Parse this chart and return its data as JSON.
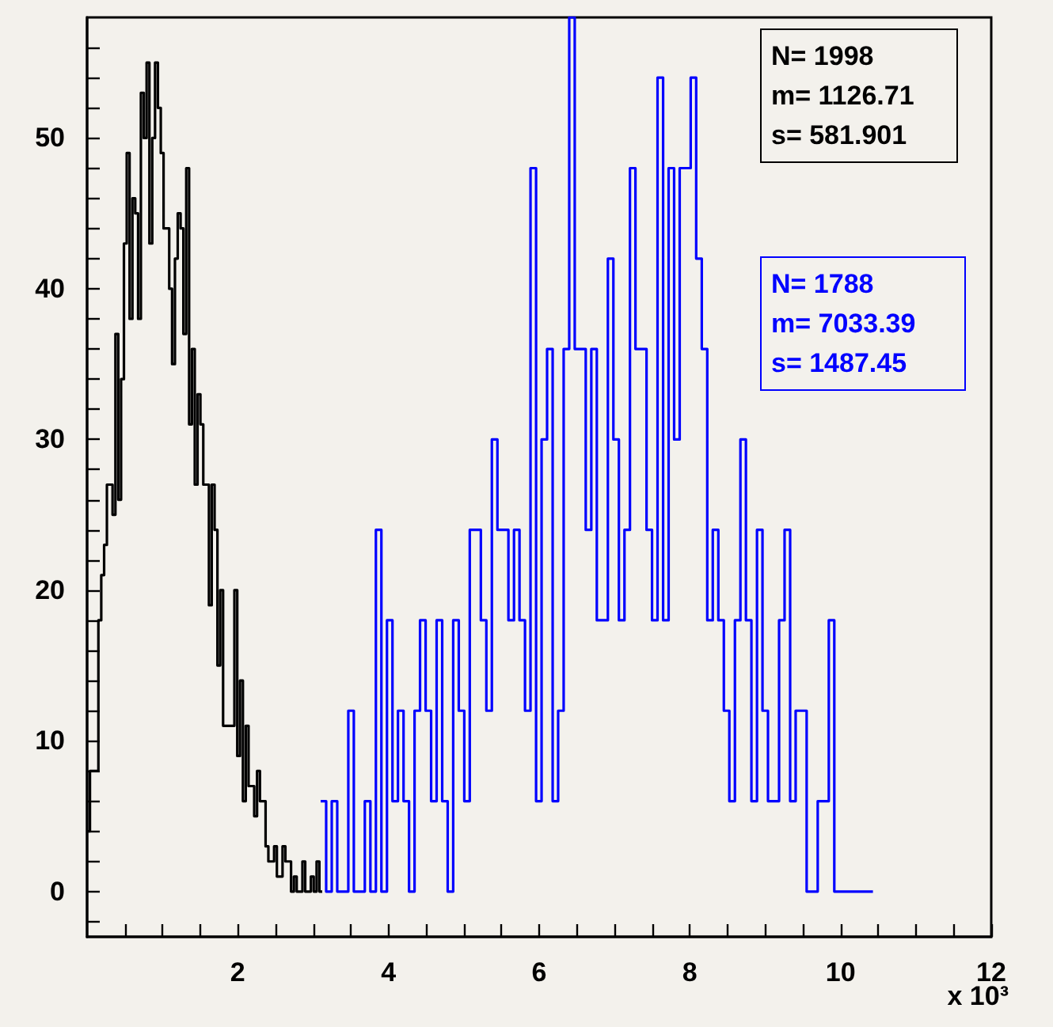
{
  "chart_data": {
    "type": "step",
    "xlim": [
      0,
      12
    ],
    "xticks": [
      {
        "value": 0.5,
        "label": null
      },
      {
        "value": 1,
        "label": null
      },
      {
        "value": 1.5,
        "label": null
      },
      2,
      {
        "value": 2.5,
        "label": null
      },
      {
        "value": 3,
        "label": null
      },
      {
        "value": 3.5,
        "label": null
      },
      4,
      {
        "value": 4.5,
        "label": null
      },
      {
        "value": 5,
        "label": null
      },
      {
        "value": 5.5,
        "label": null
      },
      6,
      {
        "value": 6.5,
        "label": null
      },
      {
        "value": 7,
        "label": null
      },
      {
        "value": 7.5,
        "label": null
      },
      8,
      {
        "value": 8.5,
        "label": null
      },
      {
        "value": 9,
        "label": null
      },
      {
        "value": 9.5,
        "label": null
      },
      10,
      {
        "value": 10.5,
        "label": null
      },
      {
        "value": 11,
        "label": null
      },
      {
        "value": 11.5,
        "label": null
      },
      12
    ],
    "ylim": [
      -3,
      58
    ],
    "yticks": [
      {
        "value": -2,
        "label": null
      },
      0,
      {
        "value": 2,
        "label": null
      },
      {
        "value": 4,
        "label": null
      },
      {
        "value": 6,
        "label": null
      },
      {
        "value": 8,
        "label": null
      },
      10,
      {
        "value": 12,
        "label": null
      },
      {
        "value": 14,
        "label": null
      },
      {
        "value": 16,
        "label": null
      },
      {
        "value": 18,
        "label": null
      },
      20,
      {
        "value": 22,
        "label": null
      },
      {
        "value": 24,
        "label": null
      },
      {
        "value": 26,
        "label": null
      },
      {
        "value": 28,
        "label": null
      },
      30,
      {
        "value": 32,
        "label": null
      },
      {
        "value": 34,
        "label": null
      },
      {
        "value": 36,
        "label": null
      },
      {
        "value": 38,
        "label": null
      },
      40,
      {
        "value": 42,
        "label": null
      },
      {
        "value": 44,
        "label": null
      },
      {
        "value": 46,
        "label": null
      },
      {
        "value": 48,
        "label": null
      },
      50,
      {
        "value": 52,
        "label": null
      },
      {
        "value": 54,
        "label": null
      },
      {
        "value": 56,
        "label": null
      }
    ],
    "annotations": [
      "N= 1998\nm= 1126.71\ns= 581.901",
      "N= 1788\nm= 7033.39\ns= 1487.45",
      "x 10³"
    ],
    "series": [
      {
        "color": "#000000",
        "x": [
          0,
          0.038,
          0.075,
          0.113,
          0.15,
          0.188,
          0.226,
          0.263,
          0.301,
          0.338,
          0.376,
          0.414,
          0.451,
          0.489,
          0.526,
          0.564,
          0.602,
          0.639,
          0.677,
          0.714,
          0.752,
          0.79,
          0.827,
          0.865,
          0.902,
          0.94,
          0.978,
          1.015,
          1.053,
          1.09,
          1.128,
          1.166,
          1.203,
          1.241,
          1.278,
          1.316,
          1.354,
          1.391,
          1.429,
          1.466,
          1.504,
          1.542,
          1.579,
          1.617,
          1.654,
          1.692,
          1.73,
          1.767,
          1.805,
          1.842,
          1.88,
          1.918,
          1.955,
          1.993,
          2.03,
          2.068,
          2.106,
          2.143,
          2.181,
          2.218,
          2.256,
          2.294,
          2.331,
          2.369,
          2.406,
          2.444,
          2.482,
          2.519,
          2.557,
          2.594,
          2.632,
          2.67,
          2.707,
          2.745,
          2.782,
          2.82,
          2.858,
          2.895,
          2.933,
          2.97,
          3.008,
          3.046,
          3.083,
          3.121
        ],
        "values": [
          4,
          8,
          8,
          8,
          18,
          21,
          23,
          27,
          27,
          25,
          37,
          26,
          34,
          43,
          49,
          38,
          46,
          45,
          38,
          53,
          50,
          55,
          43,
          50,
          55,
          52,
          49,
          44,
          44,
          40,
          35,
          42,
          45,
          44,
          37,
          48,
          31,
          36,
          27,
          33,
          31,
          27,
          27,
          19,
          27,
          24,
          15,
          20,
          11,
          11,
          11,
          11,
          20,
          9,
          14,
          6,
          11,
          7,
          7,
          5,
          8,
          6,
          6,
          3,
          2,
          2,
          3,
          1,
          1,
          3,
          2,
          2,
          0,
          1,
          0,
          0,
          2,
          0,
          0,
          1,
          0,
          2,
          0,
          0
        ]
      },
      {
        "color": "#0000ff",
        "x": [
          3.1,
          3.173,
          3.247,
          3.32,
          3.393,
          3.467,
          3.54,
          3.613,
          3.686,
          3.76,
          3.833,
          3.906,
          3.98,
          4.053,
          4.126,
          4.2,
          4.273,
          4.346,
          4.419,
          4.493,
          4.566,
          4.639,
          4.713,
          4.786,
          4.859,
          4.933,
          5.006,
          5.079,
          5.152,
          5.226,
          5.299,
          5.372,
          5.446,
          5.519,
          5.592,
          5.666,
          5.739,
          5.812,
          5.885,
          5.959,
          6.032,
          6.105,
          6.179,
          6.252,
          6.325,
          6.399,
          6.472,
          6.545,
          6.618,
          6.692,
          6.765,
          6.838,
          6.912,
          6.985,
          7.058,
          7.132,
          7.205,
          7.278,
          7.351,
          7.425,
          7.498,
          7.571,
          7.645,
          7.718,
          7.791,
          7.865,
          7.938,
          8.011,
          8.084,
          8.158,
          8.231,
          8.304,
          8.378,
          8.451,
          8.524,
          8.598,
          8.671,
          8.744,
          8.817,
          8.891,
          8.964,
          9.037,
          9.111,
          9.184,
          9.257,
          9.331,
          9.404,
          9.477,
          9.55,
          9.624,
          9.697,
          9.77,
          9.844,
          9.917,
          9.99,
          10.064,
          10.137,
          10.21,
          10.283,
          10.357,
          10.43
        ],
        "values": [
          6,
          0,
          6,
          0,
          0,
          12,
          0,
          0,
          6,
          0,
          24,
          0,
          18,
          6,
          12,
          6,
          0,
          12,
          18,
          12,
          6,
          18,
          6,
          0,
          18,
          12,
          6,
          24,
          24,
          18,
          12,
          30,
          24,
          24,
          18,
          24,
          18,
          12,
          48,
          6,
          30,
          36,
          6,
          12,
          36,
          58,
          36,
          36,
          24,
          36,
          18,
          18,
          42,
          30,
          18,
          24,
          48,
          36,
          36,
          24,
          18,
          54,
          18,
          48,
          30,
          48,
          48,
          54,
          42,
          36,
          18,
          24,
          18,
          12,
          6,
          18,
          30,
          18,
          6,
          24,
          12,
          6,
          6,
          18,
          24,
          6,
          12,
          12,
          0,
          0,
          6,
          6,
          18,
          0,
          0,
          0,
          0,
          0,
          0,
          0,
          0
        ]
      }
    ]
  }
}
